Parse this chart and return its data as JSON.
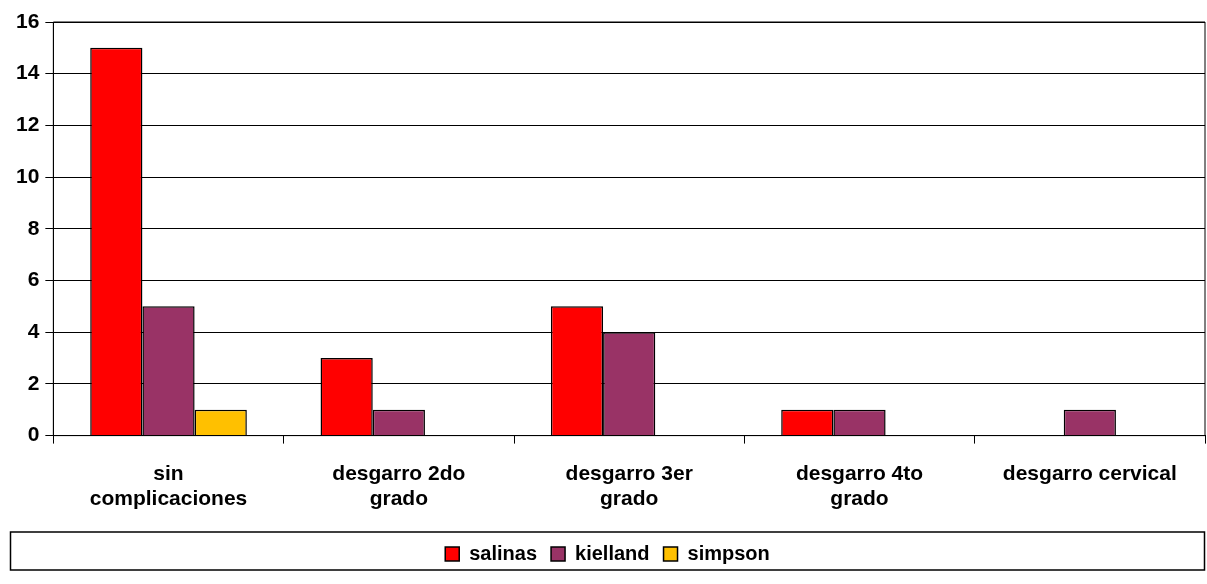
{
  "chart_data": {
    "type": "bar",
    "categories": [
      "sin complicaciones",
      "desgarro 2do grado",
      "desgarro 3er grado",
      "desgarro 4to grado",
      "desgarro cervical"
    ],
    "series": [
      {
        "name": "salinas",
        "color": "#ff0000",
        "values": [
          15,
          3,
          5,
          1,
          0
        ]
      },
      {
        "name": "kielland",
        "color": "#993366",
        "values": [
          5,
          1,
          4,
          1,
          1
        ]
      },
      {
        "name": "simpson",
        "color": "#ffc000",
        "values": [
          1,
          0,
          0,
          0,
          0
        ]
      }
    ],
    "ylim": [
      0,
      16
    ],
    "yticks": [
      0,
      2,
      4,
      6,
      8,
      10,
      12,
      14,
      16
    ],
    "grid": "y",
    "legend": "bottom"
  }
}
